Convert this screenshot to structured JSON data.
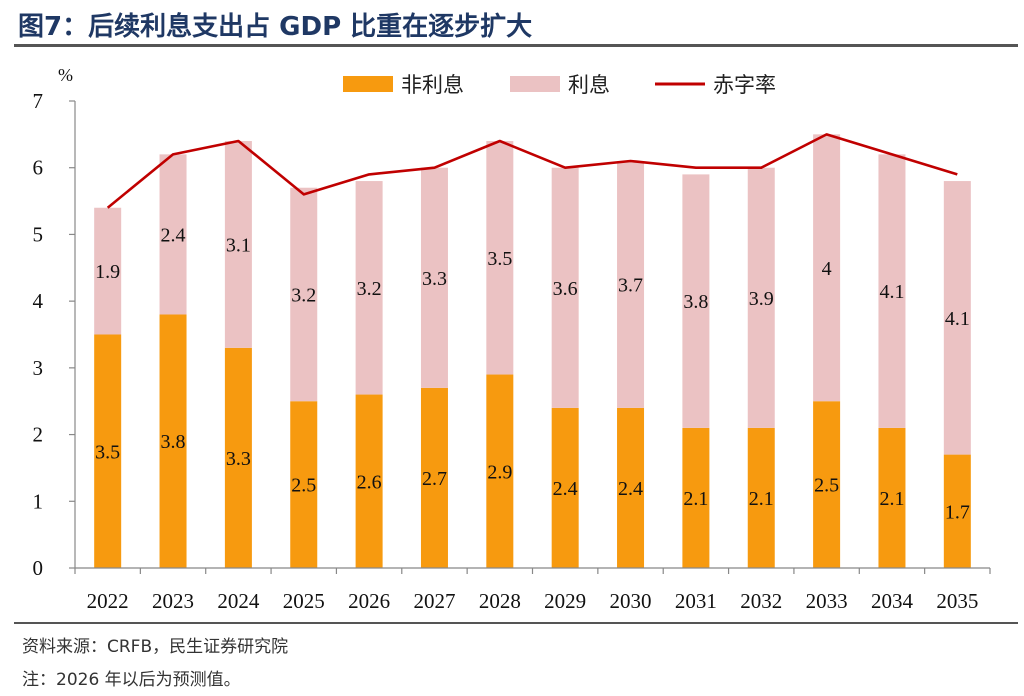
{
  "title": "图7：后续利息支出占 GDP 比重在逐步扩大",
  "source": "资料来源：CRFB，民生证券研究院",
  "note": "注：2026 年以后为预测值。",
  "colors": {
    "non_interest": "#f79a0f",
    "interest": "#ebc2c3",
    "deficit": "#c00000",
    "axis": "#888888"
  },
  "chart_data": {
    "type": "bar",
    "stacked": true,
    "unit_label": "%",
    "categories": [
      "2022",
      "2023",
      "2024",
      "2025",
      "2026",
      "2027",
      "2028",
      "2029",
      "2030",
      "2031",
      "2032",
      "2033",
      "2034",
      "2035"
    ],
    "series": [
      {
        "name": "非利息",
        "type": "bar",
        "values": [
          3.5,
          3.8,
          3.3,
          2.5,
          2.6,
          2.7,
          2.9,
          2.4,
          2.4,
          2.1,
          2.1,
          2.5,
          2.1,
          1.7
        ]
      },
      {
        "name": "利息",
        "type": "bar",
        "values": [
          1.9,
          2.4,
          3.1,
          3.2,
          3.2,
          3.3,
          3.5,
          3.6,
          3.7,
          3.8,
          3.9,
          4,
          4.1,
          4.1
        ]
      },
      {
        "name": "赤字率",
        "type": "line",
        "values": [
          5.4,
          6.2,
          6.4,
          5.6,
          5.9,
          6.0,
          6.4,
          6.0,
          6.1,
          6.0,
          6.0,
          6.5,
          6.2,
          5.9
        ]
      }
    ],
    "yticks": [
      "0",
      "1",
      "2",
      "3",
      "4",
      "5",
      "6",
      "7"
    ],
    "ylim": [
      0,
      7
    ],
    "grid": false,
    "legend_position": "top-center"
  }
}
